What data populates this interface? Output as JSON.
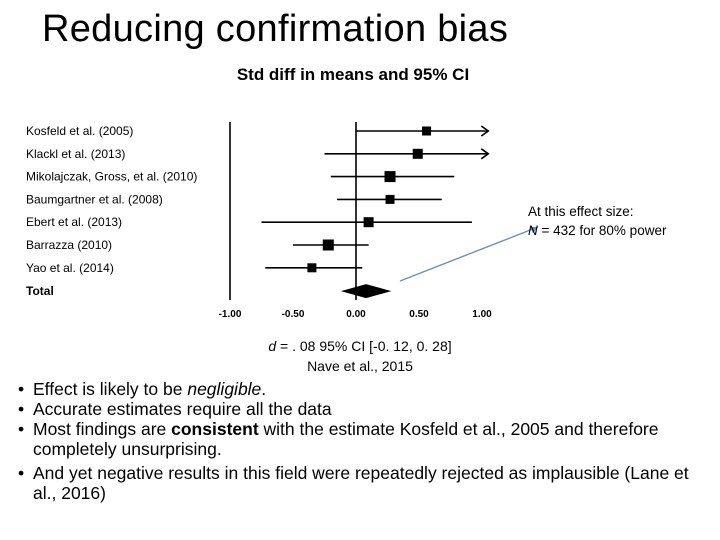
{
  "slide": {
    "title": "Reducing confirmation bias"
  },
  "chart_data": {
    "type": "forest",
    "title": "Std diff in means and 95% CI",
    "xlabel": "",
    "ylabel": "",
    "xlim": [
      -1.0,
      1.0
    ],
    "x_ticks": [
      "-1.00",
      "-0.50",
      "0.00",
      "0.50",
      "1.00"
    ],
    "x_tick_values": [
      -1.0,
      -0.5,
      0.0,
      0.5,
      1.0
    ],
    "studies": [
      {
        "label": "Kosfeld et al. (2005)",
        "estimate": 0.56,
        "lower": 0.0,
        "upper": 1.05,
        "arrow_right": true
      },
      {
        "label": "Klackl et al. (2013)",
        "estimate": 0.49,
        "lower": -0.25,
        "upper": 1.05,
        "arrow_right": true
      },
      {
        "label": "Mikolajczak, Gross, et al. (2010)",
        "estimate": 0.27,
        "lower": -0.2,
        "upper": 0.78,
        "arrow_right": false
      },
      {
        "label": "Baumgartner et al. (2008)",
        "estimate": 0.27,
        "lower": -0.15,
        "upper": 0.68,
        "arrow_right": false
      },
      {
        "label": "Ebert et al. (2013)",
        "estimate": 0.1,
        "lower": -0.75,
        "upper": 0.92,
        "arrow_right": false
      },
      {
        "label": "Barrazza (2010)",
        "estimate": -0.22,
        "lower": -0.5,
        "upper": 0.1,
        "arrow_right": false
      },
      {
        "label": "Yao et al. (2014)",
        "estimate": -0.35,
        "lower": -0.72,
        "upper": 0.05,
        "arrow_right": false
      }
    ],
    "total": {
      "label": "Total",
      "estimate": 0.08,
      "lower": -0.12,
      "upper": 0.28
    }
  },
  "annotation": {
    "line1": "At this effect size:",
    "line2": "N = 432 for 80% power"
  },
  "caption": {
    "line1": "d = . 08 95% CI [-0. 12, 0. 28]",
    "line2": "Nave et al., 2015"
  },
  "bullets": {
    "b1_pre": "Effect is likely to be ",
    "b1_em": "negligible",
    "b1_post": ".",
    "b2": "Accurate estimates require all the data",
    "b3_pre": "Most findings are ",
    "b3_strong": "consistent",
    "b3_post": " with the estimate Kosfeld et al., 2005 and therefore completely unsurprising.",
    "b4": "And yet negative results in this field were repeatedly rejected as implausible (Lane et al., 2016)"
  },
  "colors": {
    "pointer_line": "#6b8fc0",
    "ink": "#000000"
  }
}
